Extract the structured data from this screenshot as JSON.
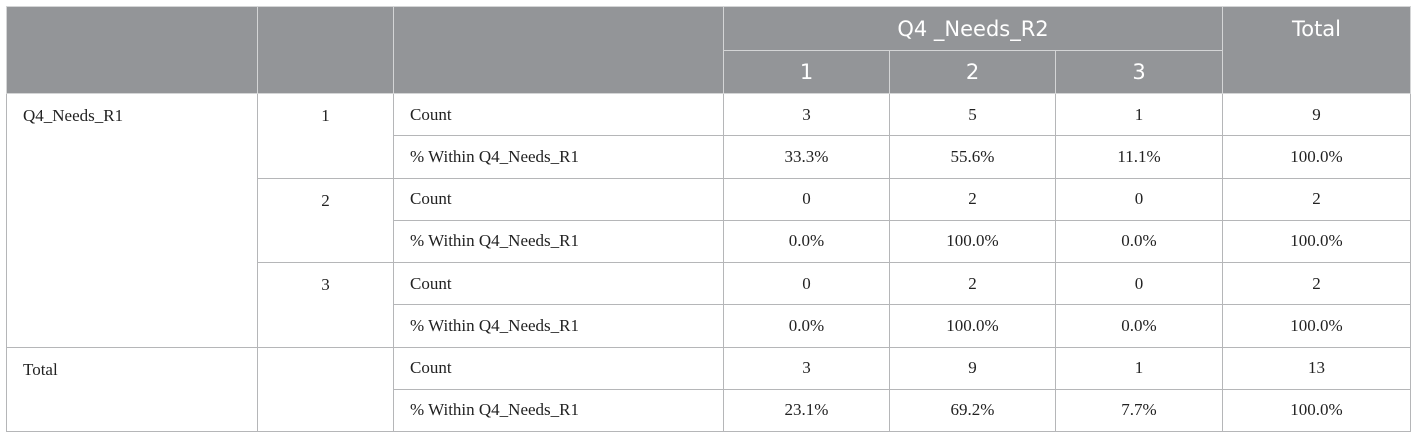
{
  "header": {
    "col_var": "Q4 _Needs_R2",
    "total_label": "Total",
    "col_levels": [
      "1",
      "2",
      "3"
    ]
  },
  "row_var": "Q4_Needs_R1",
  "groups": [
    {
      "level": "1",
      "rows": [
        {
          "stat": "Count",
          "values": [
            "3",
            "5",
            "1"
          ],
          "total": "9"
        },
        {
          "stat": "% Within Q4_Needs_R1",
          "values": [
            "33.3%",
            "55.6%",
            "11.1%"
          ],
          "total": "100.0%"
        }
      ]
    },
    {
      "level": "2",
      "rows": [
        {
          "stat": "Count",
          "values": [
            "0",
            "2",
            "0"
          ],
          "total": "2"
        },
        {
          "stat": "% Within Q4_Needs_R1",
          "values": [
            "0.0%",
            "100.0%",
            "0.0%"
          ],
          "total": "100.0%"
        }
      ]
    },
    {
      "level": "3",
      "rows": [
        {
          "stat": "Count",
          "values": [
            "0",
            "2",
            "0"
          ],
          "total": "2"
        },
        {
          "stat": "% Within Q4_Needs_R1",
          "values": [
            "0.0%",
            "100.0%",
            "0.0%"
          ],
          "total": "100.0%"
        }
      ]
    }
  ],
  "total_group": {
    "label": "Total",
    "rows": [
      {
        "stat": "Count",
        "values": [
          "3",
          "9",
          "1"
        ],
        "total": "13"
      },
      {
        "stat": "% Within Q4_Needs_R1",
        "values": [
          "23.1%",
          "69.2%",
          "7.7%"
        ],
        "total": "100.0%"
      }
    ]
  }
}
